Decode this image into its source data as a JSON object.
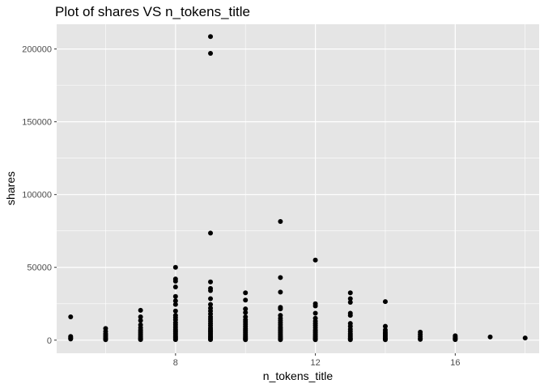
{
  "chart_data": {
    "type": "scatter",
    "title": "Plot of shares VS n_tokens_title",
    "xlabel": "n_tokens_title",
    "ylabel": "shares",
    "xlim": [
      4.6,
      18.4
    ],
    "ylim": [
      -9000,
      217000
    ],
    "x_ticks": [
      8,
      12,
      16
    ],
    "x_minor_ticks": [
      6,
      10,
      14,
      18
    ],
    "y_ticks": [
      0,
      50000,
      100000,
      150000,
      200000
    ],
    "y_minor_ticks": [
      25000,
      75000,
      125000,
      175000
    ],
    "grid": true,
    "legend": "none",
    "colors": {
      "panel": "#e5e5e5",
      "grid": "#ffffff",
      "point": "#000000"
    },
    "points": [
      {
        "x": 5,
        "y": 16000
      },
      {
        "x": 5,
        "y": 2500
      },
      {
        "x": 5,
        "y": 1800
      },
      {
        "x": 5,
        "y": 1200
      },
      {
        "x": 5,
        "y": 800
      },
      {
        "x": 6,
        "y": 8000
      },
      {
        "x": 6,
        "y": 6000
      },
      {
        "x": 6,
        "y": 4500
      },
      {
        "x": 6,
        "y": 3500
      },
      {
        "x": 6,
        "y": 2500
      },
      {
        "x": 6,
        "y": 1500
      },
      {
        "x": 6,
        "y": 800
      },
      {
        "x": 6,
        "y": 300
      },
      {
        "x": 7,
        "y": 20500
      },
      {
        "x": 7,
        "y": 16000
      },
      {
        "x": 7,
        "y": 13500
      },
      {
        "x": 7,
        "y": 10500
      },
      {
        "x": 7,
        "y": 8500
      },
      {
        "x": 7,
        "y": 7000
      },
      {
        "x": 7,
        "y": 6000
      },
      {
        "x": 7,
        "y": 5000
      },
      {
        "x": 7,
        "y": 4000
      },
      {
        "x": 7,
        "y": 3000
      },
      {
        "x": 7,
        "y": 2200
      },
      {
        "x": 7,
        "y": 1500
      },
      {
        "x": 7,
        "y": 900
      },
      {
        "x": 7,
        "y": 400
      },
      {
        "x": 8,
        "y": 50000
      },
      {
        "x": 8,
        "y": 42000
      },
      {
        "x": 8,
        "y": 40500
      },
      {
        "x": 8,
        "y": 36500
      },
      {
        "x": 8,
        "y": 30000
      },
      {
        "x": 8,
        "y": 27000
      },
      {
        "x": 8,
        "y": 24500
      },
      {
        "x": 8,
        "y": 20000
      },
      {
        "x": 8,
        "y": 17000
      },
      {
        "x": 8,
        "y": 15500
      },
      {
        "x": 8,
        "y": 14000
      },
      {
        "x": 8,
        "y": 12000
      },
      {
        "x": 8,
        "y": 10500
      },
      {
        "x": 8,
        "y": 9000
      },
      {
        "x": 8,
        "y": 7500
      },
      {
        "x": 8,
        "y": 6500
      },
      {
        "x": 8,
        "y": 5500
      },
      {
        "x": 8,
        "y": 4500
      },
      {
        "x": 8,
        "y": 3500
      },
      {
        "x": 8,
        "y": 2500
      },
      {
        "x": 8,
        "y": 1800
      },
      {
        "x": 8,
        "y": 1000
      },
      {
        "x": 8,
        "y": 400
      },
      {
        "x": 9,
        "y": 208500
      },
      {
        "x": 9,
        "y": 197000
      },
      {
        "x": 9,
        "y": 73500
      },
      {
        "x": 9,
        "y": 40000
      },
      {
        "x": 9,
        "y": 35500
      },
      {
        "x": 9,
        "y": 34000
      },
      {
        "x": 9,
        "y": 28500
      },
      {
        "x": 9,
        "y": 24500
      },
      {
        "x": 9,
        "y": 22000
      },
      {
        "x": 9,
        "y": 20000
      },
      {
        "x": 9,
        "y": 18000
      },
      {
        "x": 9,
        "y": 16000
      },
      {
        "x": 9,
        "y": 14500
      },
      {
        "x": 9,
        "y": 13000
      },
      {
        "x": 9,
        "y": 11500
      },
      {
        "x": 9,
        "y": 10000
      },
      {
        "x": 9,
        "y": 8500
      },
      {
        "x": 9,
        "y": 7500
      },
      {
        "x": 9,
        "y": 6500
      },
      {
        "x": 9,
        "y": 5500
      },
      {
        "x": 9,
        "y": 4500
      },
      {
        "x": 9,
        "y": 3500
      },
      {
        "x": 9,
        "y": 2500
      },
      {
        "x": 9,
        "y": 1800
      },
      {
        "x": 9,
        "y": 1000
      },
      {
        "x": 9,
        "y": 400
      },
      {
        "x": 10,
        "y": 32500
      },
      {
        "x": 10,
        "y": 27500
      },
      {
        "x": 10,
        "y": 21500
      },
      {
        "x": 10,
        "y": 19000
      },
      {
        "x": 10,
        "y": 16000
      },
      {
        "x": 10,
        "y": 14000
      },
      {
        "x": 10,
        "y": 12500
      },
      {
        "x": 10,
        "y": 11000
      },
      {
        "x": 10,
        "y": 9500
      },
      {
        "x": 10,
        "y": 8000
      },
      {
        "x": 10,
        "y": 7000
      },
      {
        "x": 10,
        "y": 6000
      },
      {
        "x": 10,
        "y": 5000
      },
      {
        "x": 10,
        "y": 4000
      },
      {
        "x": 10,
        "y": 3000
      },
      {
        "x": 10,
        "y": 2200
      },
      {
        "x": 10,
        "y": 1500
      },
      {
        "x": 10,
        "y": 800
      },
      {
        "x": 10,
        "y": 300
      },
      {
        "x": 11,
        "y": 81500
      },
      {
        "x": 11,
        "y": 43000
      },
      {
        "x": 11,
        "y": 33000
      },
      {
        "x": 11,
        "y": 22500
      },
      {
        "x": 11,
        "y": 21500
      },
      {
        "x": 11,
        "y": 17000
      },
      {
        "x": 11,
        "y": 15000
      },
      {
        "x": 11,
        "y": 13500
      },
      {
        "x": 11,
        "y": 12000
      },
      {
        "x": 11,
        "y": 10500
      },
      {
        "x": 11,
        "y": 9000
      },
      {
        "x": 11,
        "y": 8000
      },
      {
        "x": 11,
        "y": 7000
      },
      {
        "x": 11,
        "y": 6000
      },
      {
        "x": 11,
        "y": 5000
      },
      {
        "x": 11,
        "y": 4000
      },
      {
        "x": 11,
        "y": 3000
      },
      {
        "x": 11,
        "y": 2200
      },
      {
        "x": 11,
        "y": 1500
      },
      {
        "x": 11,
        "y": 800
      },
      {
        "x": 11,
        "y": 300
      },
      {
        "x": 12,
        "y": 55000
      },
      {
        "x": 12,
        "y": 25000
      },
      {
        "x": 12,
        "y": 23500
      },
      {
        "x": 12,
        "y": 18500
      },
      {
        "x": 12,
        "y": 15000
      },
      {
        "x": 12,
        "y": 13000
      },
      {
        "x": 12,
        "y": 11500
      },
      {
        "x": 12,
        "y": 10000
      },
      {
        "x": 12,
        "y": 8500
      },
      {
        "x": 12,
        "y": 7000
      },
      {
        "x": 12,
        "y": 6000
      },
      {
        "x": 12,
        "y": 5000
      },
      {
        "x": 12,
        "y": 4000
      },
      {
        "x": 12,
        "y": 3000
      },
      {
        "x": 12,
        "y": 2200
      },
      {
        "x": 12,
        "y": 1500
      },
      {
        "x": 12,
        "y": 800
      },
      {
        "x": 12,
        "y": 300
      },
      {
        "x": 13,
        "y": 32500
      },
      {
        "x": 13,
        "y": 28500
      },
      {
        "x": 13,
        "y": 26000
      },
      {
        "x": 13,
        "y": 18500
      },
      {
        "x": 13,
        "y": 17000
      },
      {
        "x": 13,
        "y": 11500
      },
      {
        "x": 13,
        "y": 9500
      },
      {
        "x": 13,
        "y": 7500
      },
      {
        "x": 13,
        "y": 6000
      },
      {
        "x": 13,
        "y": 4500
      },
      {
        "x": 13,
        "y": 3500
      },
      {
        "x": 13,
        "y": 2500
      },
      {
        "x": 13,
        "y": 1500
      },
      {
        "x": 13,
        "y": 800
      },
      {
        "x": 13,
        "y": 300
      },
      {
        "x": 14,
        "y": 26500
      },
      {
        "x": 14,
        "y": 9500
      },
      {
        "x": 14,
        "y": 7000
      },
      {
        "x": 14,
        "y": 5500
      },
      {
        "x": 14,
        "y": 4500
      },
      {
        "x": 14,
        "y": 3500
      },
      {
        "x": 14,
        "y": 2500
      },
      {
        "x": 14,
        "y": 1500
      },
      {
        "x": 14,
        "y": 800
      },
      {
        "x": 14,
        "y": 300
      },
      {
        "x": 15,
        "y": 5500
      },
      {
        "x": 15,
        "y": 4000
      },
      {
        "x": 15,
        "y": 2500
      },
      {
        "x": 15,
        "y": 1200
      },
      {
        "x": 15,
        "y": 500
      },
      {
        "x": 16,
        "y": 3000
      },
      {
        "x": 16,
        "y": 2200
      },
      {
        "x": 16,
        "y": 1500
      },
      {
        "x": 16,
        "y": 900
      },
      {
        "x": 16,
        "y": 400
      },
      {
        "x": 17,
        "y": 2200
      },
      {
        "x": 18,
        "y": 1500
      }
    ]
  }
}
